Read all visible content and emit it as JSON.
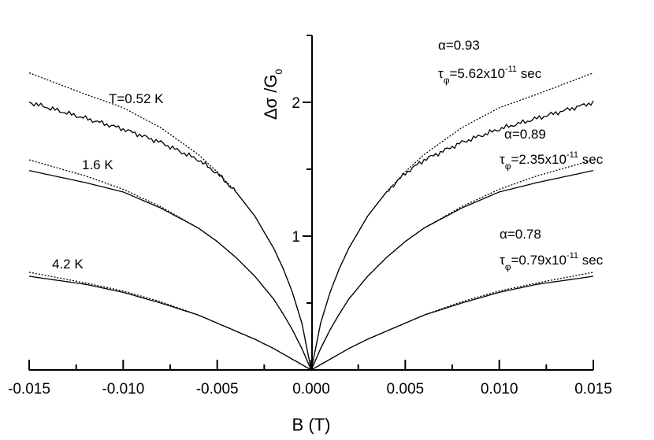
{
  "chart_data": {
    "type": "line",
    "xlabel": "B (T)",
    "ylabel_main": "Δσ /G",
    "ylabel_sub": "0",
    "xlim": [
      -0.015,
      0.015
    ],
    "ylim": [
      0,
      2.5
    ],
    "x_ticks": [
      {
        "value": -0.015,
        "label": "-0.015"
      },
      {
        "value": -0.01,
        "label": "-0.010"
      },
      {
        "value": -0.005,
        "label": "-0.005"
      },
      {
        "value": 0.0,
        "label": "0.000"
      },
      {
        "value": 0.005,
        "label": "0.005"
      },
      {
        "value": 0.01,
        "label": "0.010"
      },
      {
        "value": 0.015,
        "label": "0.015"
      }
    ],
    "y_ticks": [
      {
        "value": 1,
        "label": "1"
      },
      {
        "value": 2,
        "label": "2"
      }
    ],
    "grid": false,
    "series": [
      {
        "name": "T=0.52 K",
        "kind": "measured",
        "x": [
          0,
          0.0005,
          0.001,
          0.0015,
          0.002,
          0.003,
          0.004,
          0.005,
          0.006,
          0.008,
          0.01,
          0.012,
          0.015
        ],
        "y": [
          0,
          0.35,
          0.58,
          0.76,
          0.91,
          1.15,
          1.33,
          1.47,
          1.57,
          1.7,
          1.8,
          1.88,
          2.0
        ]
      },
      {
        "name": "α=0.93, τφ=5.62x10-11 sec",
        "kind": "fit",
        "x": [
          0,
          0.0005,
          0.001,
          0.0015,
          0.002,
          0.003,
          0.004,
          0.005,
          0.006,
          0.008,
          0.01,
          0.012,
          0.015
        ],
        "y": [
          0,
          0.35,
          0.58,
          0.76,
          0.91,
          1.15,
          1.33,
          1.48,
          1.61,
          1.81,
          1.96,
          2.06,
          2.22
        ]
      },
      {
        "name": "1.6 K",
        "kind": "measured",
        "x": [
          0,
          0.0005,
          0.001,
          0.0015,
          0.002,
          0.003,
          0.004,
          0.005,
          0.006,
          0.008,
          0.01,
          0.012,
          0.015
        ],
        "y": [
          0,
          0.16,
          0.3,
          0.42,
          0.53,
          0.7,
          0.84,
          0.96,
          1.06,
          1.21,
          1.33,
          1.4,
          1.49
        ]
      },
      {
        "name": "α=0.89, τφ=2.35x10-11 sec",
        "kind": "fit",
        "x": [
          0,
          0.0005,
          0.001,
          0.0015,
          0.002,
          0.003,
          0.004,
          0.005,
          0.006,
          0.008,
          0.01,
          0.012,
          0.015
        ],
        "y": [
          0,
          0.16,
          0.3,
          0.42,
          0.53,
          0.7,
          0.84,
          0.96,
          1.06,
          1.22,
          1.35,
          1.45,
          1.57
        ]
      },
      {
        "name": "4.2 K",
        "kind": "measured",
        "x": [
          0,
          0.0005,
          0.001,
          0.0015,
          0.002,
          0.003,
          0.004,
          0.005,
          0.006,
          0.008,
          0.01,
          0.012,
          0.015
        ],
        "y": [
          0,
          0.04,
          0.08,
          0.12,
          0.16,
          0.23,
          0.29,
          0.35,
          0.41,
          0.5,
          0.58,
          0.64,
          0.7
        ]
      },
      {
        "name": "α=0.78, τφ=0.79x10-11 sec",
        "kind": "fit",
        "x": [
          0,
          0.0005,
          0.001,
          0.0015,
          0.002,
          0.003,
          0.004,
          0.005,
          0.006,
          0.008,
          0.01,
          0.012,
          0.015
        ],
        "y": [
          0,
          0.04,
          0.08,
          0.12,
          0.16,
          0.23,
          0.29,
          0.35,
          0.41,
          0.51,
          0.59,
          0.65,
          0.73
        ]
      }
    ],
    "annotations": {
      "temp_052": "T=0.52 K",
      "temp_16": "1.6 K",
      "temp_42": "4.2 K",
      "fit_093": {
        "alpha": "α=0.93",
        "tau": "τ",
        "tau_sub": "φ",
        "tau_val": "=5.62x10",
        "tau_exp": "-11",
        "tau_unit": " sec"
      },
      "fit_089": {
        "alpha": "α=0.89",
        "tau": "τ",
        "tau_sub": "φ",
        "tau_val": "=2.35x10",
        "tau_exp": "-11",
        "tau_unit": " sec"
      },
      "fit_078": {
        "alpha": "α=0.78",
        "tau": "τ",
        "tau_sub": "φ",
        "tau_val": "=0.79x10",
        "tau_exp": "-11",
        "tau_unit": " sec"
      }
    }
  }
}
